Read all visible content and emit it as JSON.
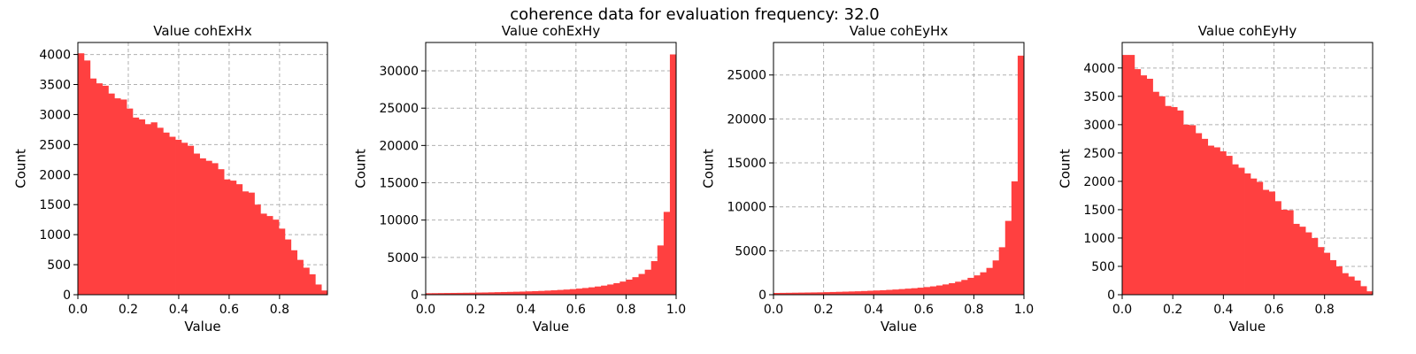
{
  "figure_title": "coherence data for evaluation frequency: 32.0",
  "bar_color": "#ff4040",
  "chart_data": [
    {
      "type": "bar",
      "title": "Value cohExHx",
      "xlabel": "Value",
      "ylabel": "Count",
      "xlim": [
        0,
        0.99
      ],
      "ylim": [
        0,
        4200
      ],
      "xticks": [
        0.0,
        0.2,
        0.4,
        0.6,
        0.8
      ],
      "xtick_labels": [
        "0.0",
        "0.2",
        "0.4",
        "0.6",
        "0.8"
      ],
      "yticks": [
        0,
        500,
        1000,
        1500,
        2000,
        2500,
        3000,
        3500,
        4000
      ],
      "ytick_labels": [
        "0",
        "500",
        "1000",
        "1500",
        "2000",
        "2500",
        "3000",
        "3500",
        "4000"
      ],
      "grid": true,
      "bin_range": [
        0,
        0.99
      ],
      "values": [
        4020,
        3900,
        3600,
        3520,
        3480,
        3350,
        3270,
        3250,
        3100,
        2950,
        2920,
        2840,
        2870,
        2780,
        2700,
        2630,
        2580,
        2530,
        2480,
        2350,
        2270,
        2230,
        2190,
        2090,
        1920,
        1900,
        1840,
        1720,
        1700,
        1500,
        1350,
        1310,
        1250,
        1100,
        920,
        740,
        580,
        450,
        340,
        170,
        70
      ]
    },
    {
      "type": "bar",
      "title": "Value cohExHy",
      "xlabel": "Value",
      "ylabel": "Count",
      "xlim": [
        0,
        1.0
      ],
      "ylim": [
        0,
        33800
      ],
      "xticks": [
        0.0,
        0.2,
        0.4,
        0.6,
        0.8,
        1.0
      ],
      "xtick_labels": [
        "0.0",
        "0.2",
        "0.4",
        "0.6",
        "0.8",
        "1.0"
      ],
      "yticks": [
        0,
        5000,
        10000,
        15000,
        20000,
        25000,
        30000
      ],
      "ytick_labels": [
        "0",
        "5000",
        "10000",
        "15000",
        "20000",
        "25000",
        "30000"
      ],
      "grid": true,
      "bin_range": [
        0,
        1.0
      ],
      "values": [
        200,
        210,
        220,
        230,
        240,
        250,
        260,
        270,
        290,
        300,
        320,
        340,
        360,
        380,
        400,
        420,
        450,
        480,
        510,
        550,
        590,
        640,
        690,
        750,
        820,
        900,
        990,
        1100,
        1220,
        1370,
        1550,
        1760,
        2020,
        2350,
        2780,
        3350,
        4500,
        6600,
        11100,
        32200
      ]
    },
    {
      "type": "bar",
      "title": "Value cohEyHx",
      "xlabel": "Value",
      "ylabel": "Count",
      "xlim": [
        0,
        1.0
      ],
      "ylim": [
        0,
        28700
      ],
      "xticks": [
        0.0,
        0.2,
        0.4,
        0.6,
        0.8,
        1.0
      ],
      "xtick_labels": [
        "0.0",
        "0.2",
        "0.4",
        "0.6",
        "0.8",
        "1.0"
      ],
      "yticks": [
        0,
        5000,
        10000,
        15000,
        20000,
        25000
      ],
      "ytick_labels": [
        "0",
        "5000",
        "10000",
        "15000",
        "20000",
        "25000"
      ],
      "grid": true,
      "bin_range": [
        0,
        1.0
      ],
      "values": [
        200,
        210,
        220,
        230,
        240,
        250,
        260,
        270,
        290,
        310,
        330,
        350,
        370,
        390,
        420,
        450,
        480,
        510,
        550,
        590,
        640,
        690,
        740,
        800,
        870,
        950,
        1050,
        1170,
        1310,
        1480,
        1680,
        1920,
        2200,
        2550,
        3050,
        3900,
        5400,
        8400,
        12900,
        27200
      ]
    },
    {
      "type": "bar",
      "title": "Value cohEyHy",
      "xlabel": "Value",
      "ylabel": "Count",
      "xlim": [
        0,
        0.99
      ],
      "ylim": [
        0,
        4450
      ],
      "xticks": [
        0.0,
        0.2,
        0.4,
        0.6,
        0.8
      ],
      "xtick_labels": [
        "0.0",
        "0.2",
        "0.4",
        "0.6",
        "0.8"
      ],
      "yticks": [
        0,
        500,
        1000,
        1500,
        2000,
        2500,
        3000,
        3500,
        4000
      ],
      "ytick_labels": [
        "0",
        "500",
        "1000",
        "1500",
        "2000",
        "2500",
        "3000",
        "3500",
        "4000"
      ],
      "grid": true,
      "bin_range": [
        0,
        0.99
      ],
      "values": [
        4230,
        4230,
        3980,
        3870,
        3810,
        3580,
        3500,
        3330,
        3310,
        3250,
        3000,
        2990,
        2850,
        2750,
        2630,
        2600,
        2530,
        2450,
        2300,
        2240,
        2140,
        2050,
        1990,
        1850,
        1820,
        1650,
        1500,
        1490,
        1250,
        1200,
        1100,
        1000,
        840,
        740,
        610,
        500,
        380,
        320,
        250,
        150,
        60
      ]
    }
  ]
}
